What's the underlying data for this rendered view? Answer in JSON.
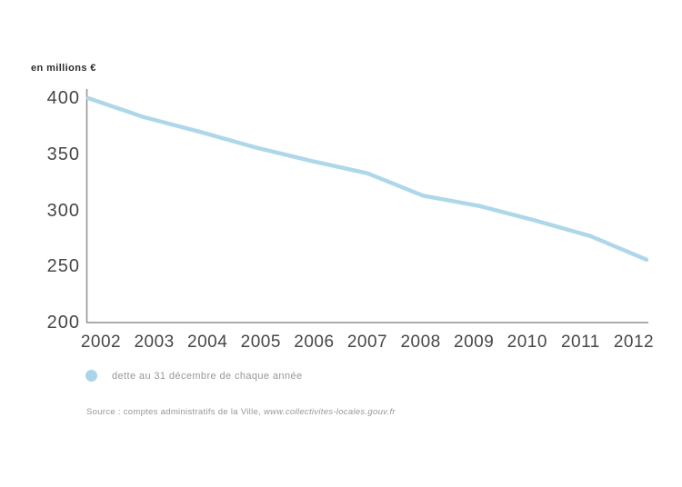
{
  "chart_data": {
    "type": "line",
    "unit_label": "en millions €",
    "x": [
      2002,
      2003,
      2004,
      2005,
      2006,
      2007,
      2008,
      2009,
      2010,
      2011,
      2012
    ],
    "values": [
      400,
      383,
      370,
      356,
      344,
      333,
      313,
      304,
      291,
      277,
      256
    ],
    "ylim": [
      200,
      400
    ],
    "yticks": [
      400,
      350,
      300,
      250,
      200
    ],
    "series": [
      {
        "name": "dette au 31 décembre de chaque année",
        "values": [
          400,
          383,
          370,
          356,
          344,
          333,
          313,
          304,
          291,
          277,
          256
        ]
      }
    ],
    "grid": false,
    "legend_position": "bottom-left",
    "line_color": "#aed8ea"
  },
  "legend": {
    "label": "dette au 31 décembre de chaque année",
    "marker_color": "#a9d4ea"
  },
  "source": {
    "prefix": "Source : comptes administratifs de la Ville, ",
    "url": "www.collectivites-locales.gouv.fr"
  },
  "colors": {
    "axis": "#8f8f8f",
    "tick_text": "#474747",
    "muted_text": "#979797"
  }
}
